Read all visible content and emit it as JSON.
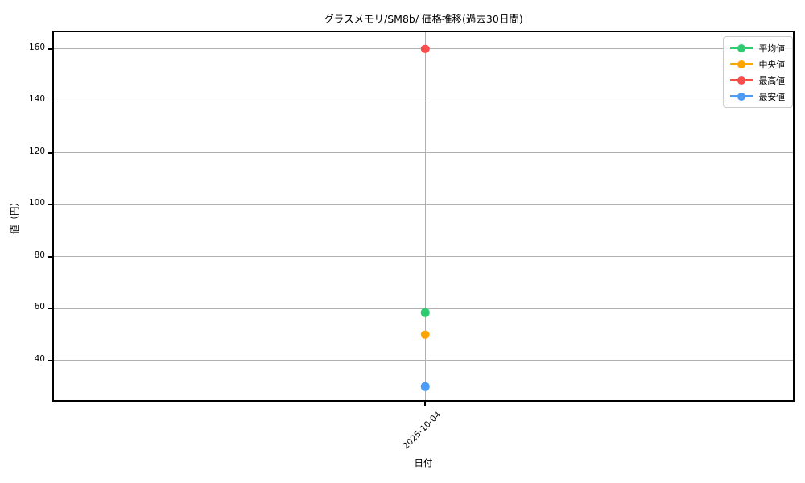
{
  "chart_data": {
    "type": "line",
    "title": "グラスメモリ/SM8b/ 価格推移(過去30日間)",
    "xlabel": "日付",
    "ylabel": "値（円）",
    "categories": [
      "2025-10-04"
    ],
    "series": [
      {
        "name": "平均値",
        "values": [
          58.5
        ],
        "color": "#2ecc71"
      },
      {
        "name": "中央値",
        "values": [
          50
        ],
        "color": "#ffa502"
      },
      {
        "name": "最高値",
        "values": [
          160
        ],
        "color": "#f94c4c"
      },
      {
        "name": "最安値",
        "values": [
          30
        ],
        "color": "#4d9bf5"
      }
    ],
    "yticks": [
      40,
      60,
      80,
      100,
      120,
      140,
      160
    ],
    "ylim": [
      23.5,
      166.5
    ],
    "grid": true,
    "legend_position": "top-right",
    "marker": "circle",
    "axis_color": "#000000",
    "grid_color": "#b0b0b0",
    "background_color": "#ffffff"
  }
}
